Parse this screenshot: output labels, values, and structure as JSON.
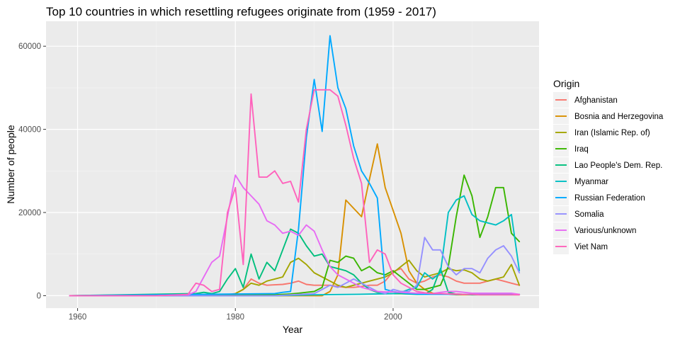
{
  "chart_data": {
    "type": "line",
    "title": "Top 10 countries in which resettling refugees originate from (1959 - 2017)",
    "xlabel": "Year",
    "ylabel": "Number of people",
    "xlim": [
      1956,
      2018.5
    ],
    "ylim": [
      -3000,
      66000
    ],
    "x_ticks": [
      1960,
      1980,
      2000
    ],
    "y_ticks": [
      0,
      20000,
      40000,
      60000
    ],
    "grid": true,
    "legend": {
      "title": "Origin",
      "position": "right"
    },
    "series": [
      {
        "name": "Afghanistan",
        "color": "#F8766D",
        "x": [
          1959,
          1965,
          1970,
          1975,
          1978,
          1980,
          1981,
          1982,
          1983,
          1984,
          1985,
          1986,
          1987,
          1988,
          1989,
          1990,
          1991,
          1992,
          1993,
          1994,
          1995,
          1996,
          1997,
          1998,
          1999,
          2000,
          2001,
          2002,
          2003,
          2004,
          2005,
          2006,
          2007,
          2008,
          2009,
          2010,
          2011,
          2012,
          2013,
          2014,
          2015,
          2016
        ],
        "y": [
          0,
          0,
          0,
          0,
          0,
          500,
          1500,
          4000,
          3000,
          2500,
          2600,
          2700,
          3000,
          3500,
          2700,
          2500,
          2500,
          2500,
          2200,
          2000,
          2000,
          2200,
          2500,
          2500,
          3500,
          5800,
          6500,
          4000,
          3000,
          3500,
          4500,
          5000,
          4500,
          3500,
          3000,
          3000,
          3000,
          3500,
          4000,
          3500,
          3000,
          2500
        ]
      },
      {
        "name": "Bosnia and Herzegovina",
        "color": "#D89000",
        "x": [
          1959,
          1991,
          1992,
          1993,
          1994,
          1995,
          1996,
          1997,
          1998,
          1999,
          2000,
          2001,
          2002,
          2003,
          2004,
          2005,
          2006,
          2007,
          2008,
          2009,
          2010,
          2011,
          2012,
          2013,
          2014,
          2015,
          2016
        ],
        "y": [
          0,
          0,
          1000,
          5000,
          23000,
          21000,
          19000,
          28000,
          36500,
          26000,
          20500,
          15000,
          6000,
          3000,
          1500,
          600,
          400,
          300,
          200,
          200,
          200,
          200,
          200,
          200,
          200,
          200,
          200
        ]
      },
      {
        "name": "Iran (Islamic Rep. of)",
        "color": "#A3A500",
        "x": [
          1959,
          1978,
          1979,
          1980,
          1981,
          1982,
          1983,
          1984,
          1985,
          1986,
          1987,
          1988,
          1989,
          1990,
          1991,
          1992,
          1993,
          1994,
          1995,
          1996,
          1997,
          1998,
          1999,
          2000,
          2001,
          2002,
          2003,
          2004,
          2005,
          2006,
          2007,
          2008,
          2009,
          2010,
          2011,
          2012,
          2013,
          2014,
          2015,
          2016
        ],
        "y": [
          0,
          0,
          100,
          500,
          1500,
          3000,
          2500,
          3500,
          4000,
          4500,
          8000,
          9000,
          7500,
          5500,
          4500,
          3500,
          2500,
          2000,
          2500,
          3000,
          3500,
          4000,
          4500,
          5500,
          7000,
          8500,
          6000,
          4500,
          5000,
          5500,
          6500,
          6000,
          6200,
          5500,
          4000,
          3500,
          4000,
          4500,
          7500,
          2500
        ]
      },
      {
        "name": "Iraq",
        "color": "#39B600",
        "x": [
          1959,
          1985,
          1987,
          1988,
          1989,
          1990,
          1991,
          1992,
          1993,
          1994,
          1995,
          1996,
          1997,
          1998,
          1999,
          2000,
          2001,
          2002,
          2003,
          2004,
          2005,
          2006,
          2007,
          2008,
          2009,
          2010,
          2011,
          2012,
          2013,
          2014,
          2015,
          2016
        ],
        "y": [
          0,
          200,
          400,
          600,
          800,
          1000,
          2000,
          8500,
          8000,
          9500,
          9000,
          6000,
          7000,
          5500,
          5000,
          6000,
          4500,
          3000,
          1500,
          1500,
          2000,
          2500,
          7000,
          19000,
          29000,
          24000,
          14000,
          19000,
          26000,
          26000,
          15000,
          13000
        ]
      },
      {
        "name": "Lao People's Dem. Rep.",
        "color": "#00BF7D",
        "x": [
          1959,
          1975,
          1976,
          1977,
          1978,
          1979,
          1980,
          1981,
          1982,
          1983,
          1984,
          1985,
          1986,
          1987,
          1988,
          1989,
          1990,
          1991,
          1992,
          1993,
          1994,
          1995,
          1996,
          1997,
          1998,
          1999,
          2000,
          2001,
          2002,
          2003,
          2004,
          2005,
          2006,
          2007,
          2008,
          2009,
          2010,
          2011,
          2012,
          2013,
          2014,
          2015,
          2016
        ],
        "y": [
          0,
          500,
          800,
          500,
          1000,
          4000,
          6500,
          2000,
          10000,
          4000,
          8000,
          6000,
          11000,
          16000,
          15000,
          12000,
          9500,
          10000,
          7000,
          6500,
          6000,
          5000,
          3000,
          1500,
          800,
          500,
          500,
          500,
          400,
          300,
          300,
          1500,
          6500,
          800,
          400,
          300,
          200,
          200,
          200,
          200,
          200,
          200,
          200
        ]
      },
      {
        "name": "Myanmar",
        "color": "#00BFC4",
        "x": [
          1959,
          1985,
          1990,
          1995,
          2000,
          2001,
          2002,
          2003,
          2004,
          2005,
          2006,
          2007,
          2008,
          2009,
          2010,
          2011,
          2012,
          2013,
          2014,
          2015,
          2016
        ],
        "y": [
          0,
          0,
          200,
          300,
          500,
          800,
          1500,
          2000,
          5500,
          4000,
          5500,
          20000,
          23000,
          24000,
          19500,
          18000,
          17500,
          17000,
          18000,
          19500,
          6000
        ]
      },
      {
        "name": "Russian Federation",
        "color": "#00A9FF",
        "x": [
          1959,
          1985,
          1986,
          1987,
          1988,
          1989,
          1990,
          1991,
          1992,
          1993,
          1994,
          1995,
          1996,
          1997,
          1998,
          1999,
          2000,
          2001,
          2002,
          2003,
          2004,
          2005,
          2006,
          2007,
          2008,
          2009,
          2010,
          2011,
          2012,
          2013,
          2014,
          2015,
          2016
        ],
        "y": [
          0,
          500,
          800,
          1000,
          16000,
          38000,
          52000,
          39500,
          62500,
          50000,
          45000,
          36000,
          30000,
          27000,
          23500,
          1500,
          1000,
          700,
          500,
          400,
          300,
          300,
          300,
          300,
          300,
          300,
          300,
          300,
          300,
          300,
          300,
          300,
          300
        ]
      },
      {
        "name": "Somalia",
        "color": "#9590FF",
        "x": [
          1959,
          1985,
          1990,
          1991,
          1992,
          1993,
          1994,
          1995,
          1996,
          1997,
          1998,
          1999,
          2000,
          2001,
          2002,
          2003,
          2004,
          2005,
          2006,
          2007,
          2008,
          2009,
          2010,
          2011,
          2012,
          2013,
          2014,
          2015,
          2016
        ],
        "y": [
          0,
          0,
          500,
          1500,
          2500,
          2000,
          3000,
          4000,
          3000,
          2000,
          1000,
          500,
          1500,
          1000,
          1000,
          2500,
          14000,
          11000,
          11000,
          7000,
          5000,
          6500,
          6500,
          5500,
          9000,
          11000,
          12000,
          9500,
          5500
        ]
      },
      {
        "name": "Various/unknown",
        "color": "#E76BF3",
        "x": [
          1959,
          1965,
          1970,
          1974,
          1975,
          1976,
          1977,
          1978,
          1979,
          1980,
          1981,
          1982,
          1983,
          1984,
          1985,
          1986,
          1987,
          1988,
          1989,
          1990,
          1991,
          1992,
          1993,
          1994,
          1995,
          1996,
          1997,
          1998,
          1999,
          2000,
          2001,
          2002,
          2003,
          2004,
          2005,
          2006,
          2007,
          2008,
          2009,
          2010,
          2011,
          2012,
          2013,
          2014,
          2015,
          2016
        ],
        "y": [
          0,
          0,
          0,
          200,
          1000,
          4500,
          8000,
          9500,
          19000,
          29000,
          26000,
          24000,
          22000,
          18000,
          17000,
          15000,
          15500,
          14500,
          17000,
          15500,
          11000,
          7000,
          5000,
          4000,
          3000,
          2000,
          1500,
          1000,
          900,
          900,
          800,
          700,
          600,
          600,
          500,
          800,
          1000,
          1000,
          800,
          600,
          600,
          600,
          600,
          600,
          600,
          300
        ]
      },
      {
        "name": "Viet Nam",
        "color": "#FF62BC",
        "x": [
          1959,
          1965,
          1970,
          1974,
          1975,
          1976,
          1977,
          1978,
          1979,
          1980,
          1981,
          1982,
          1983,
          1984,
          1985,
          1986,
          1987,
          1988,
          1989,
          1990,
          1991,
          1992,
          1993,
          1994,
          1995,
          1996,
          1997,
          1998,
          1999,
          2000,
          2001,
          2002,
          2003,
          2004,
          2005,
          2006,
          2007,
          2008,
          2009,
          2010,
          2011,
          2012,
          2013,
          2014,
          2015,
          2016
        ],
        "y": [
          0,
          0,
          0,
          300,
          3000,
          2500,
          1000,
          1500,
          20000,
          26000,
          7500,
          48500,
          28500,
          28500,
          30000,
          27000,
          27500,
          22500,
          40000,
          49500,
          49500,
          49500,
          48000,
          41000,
          33000,
          27000,
          8000,
          11000,
          10000,
          5000,
          3000,
          2000,
          1000,
          700,
          500,
          500,
          400,
          400,
          300,
          300,
          200,
          200,
          200,
          200,
          200,
          200
        ]
      }
    ]
  }
}
